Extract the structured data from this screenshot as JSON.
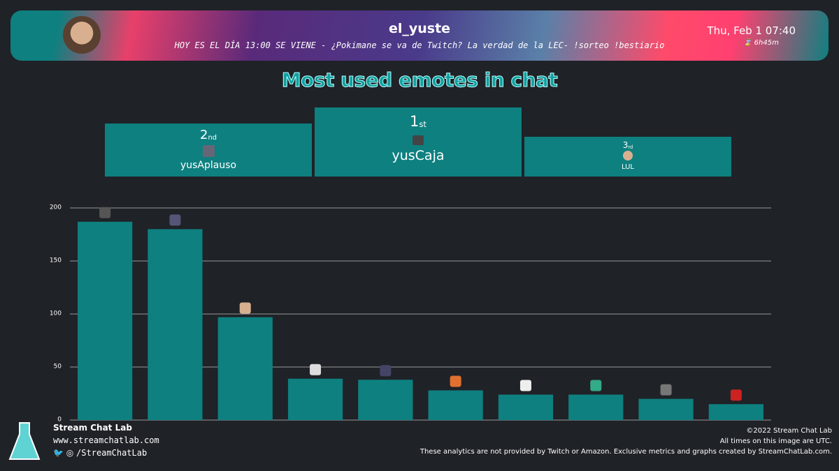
{
  "header": {
    "channel": "el_yuste",
    "stream_title": "HOY ES EL DÍA 13:00 SE VIENE - ¿Pokimane se va de Twitch? La verdad de la LEC- !sorteo !bestiario",
    "date": "Thu, Feb 1 07:40",
    "duration": "6h45m"
  },
  "podium": [
    {
      "rank": "2",
      "suffix": "nd",
      "name": "yusAplauso"
    },
    {
      "rank": "1",
      "suffix": "st",
      "name": "yusCaja"
    },
    {
      "rank": "3",
      "suffix": "rd",
      "name": "LUL"
    }
  ],
  "chart_data": {
    "type": "bar",
    "title": "Most used emotes in chat",
    "categories": [
      null,
      null,
      null,
      null,
      null,
      null,
      null,
      null,
      null,
      null
    ],
    "values": [
      187,
      180,
      97,
      39,
      38,
      28,
      24,
      24,
      20,
      15
    ],
    "color": "#0e8080",
    "ylim": [
      0,
      200
    ],
    "yticks": [
      0,
      50,
      100,
      150,
      200
    ],
    "grid": true
  },
  "footer": {
    "brand": "Stream Chat Lab",
    "website": "www.streamchatlab.com",
    "social": "/StreamChatLab",
    "copyright": "©2022 Stream Chat Lab",
    "timezone_note": "All times on this image are UTC.",
    "disclaimer": "These analytics are not provided by Twitch or Amazon. Exclusive metrics and graphs created by StreamChatLab.com."
  }
}
